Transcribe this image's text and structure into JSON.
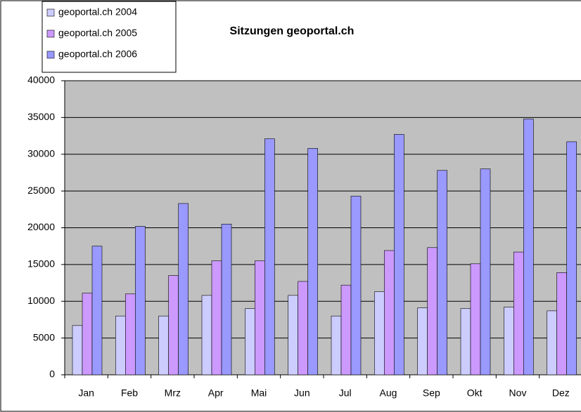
{
  "chart_data": {
    "type": "bar",
    "title": "Sitzungen geoportal.ch",
    "categories": [
      "Jan",
      "Feb",
      "Mrz",
      "Apr",
      "Mai",
      "Jun",
      "Jul",
      "Aug",
      "Sep",
      "Okt",
      "Nov",
      "Dez"
    ],
    "series": [
      {
        "name": "geoportal.ch 2004",
        "color": "#ccccff",
        "values": [
          6700,
          8000,
          8000,
          10800,
          9000,
          10800,
          8000,
          11300,
          9100,
          9000,
          9200,
          8700
        ]
      },
      {
        "name": "geoportal.ch 2005",
        "color": "#cc99ff",
        "values": [
          11100,
          11000,
          13500,
          15500,
          15500,
          12700,
          12200,
          16900,
          17300,
          15100,
          16700,
          13900
        ]
      },
      {
        "name": "geoportal.ch 2006",
        "color": "#9999ff",
        "values": [
          17500,
          20200,
          23300,
          20500,
          32100,
          30800,
          24300,
          32700,
          27800,
          28000,
          34800,
          31700
        ]
      }
    ],
    "ylim": [
      0,
      40000
    ],
    "yticks": [
      0,
      5000,
      10000,
      15000,
      20000,
      25000,
      30000,
      35000,
      40000
    ],
    "grid": true,
    "legend": "top-left",
    "plot_background": "#c0c0c0"
  }
}
